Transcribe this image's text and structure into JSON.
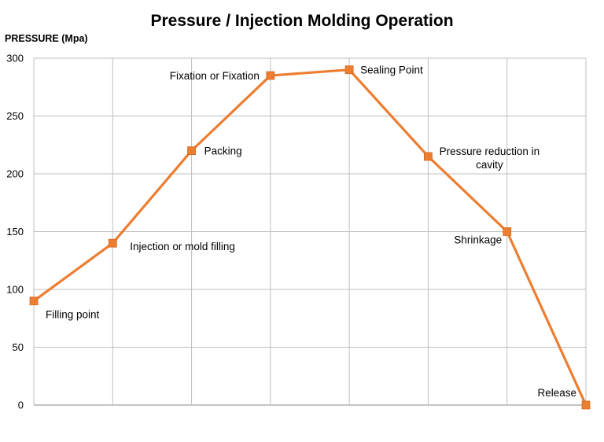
{
  "chart_data": {
    "type": "line",
    "title": "Pressure / Injection Molding Operation",
    "ylabel": "PRESSURE (Mpa)",
    "xlabel": "",
    "ylim": [
      0,
      300
    ],
    "yticks": [
      0,
      50,
      100,
      150,
      200,
      250,
      300
    ],
    "grid": true,
    "legend": "none",
    "series": [
      {
        "color": "#ED7D31",
        "points": [
          {
            "label": "Filling point",
            "y": 90
          },
          {
            "label": "Injection or mold filling",
            "y": 140
          },
          {
            "label": "Packing",
            "y": 220
          },
          {
            "label": "Fixation or Fixation",
            "y": 285
          },
          {
            "label": "Sealing Point",
            "y": 290
          },
          {
            "label": "Pressure reduction in cavity",
            "y": 215
          },
          {
            "label": "Shrinkage",
            "y": 150
          },
          {
            "label": "Release",
            "y": 0
          }
        ]
      }
    ]
  }
}
